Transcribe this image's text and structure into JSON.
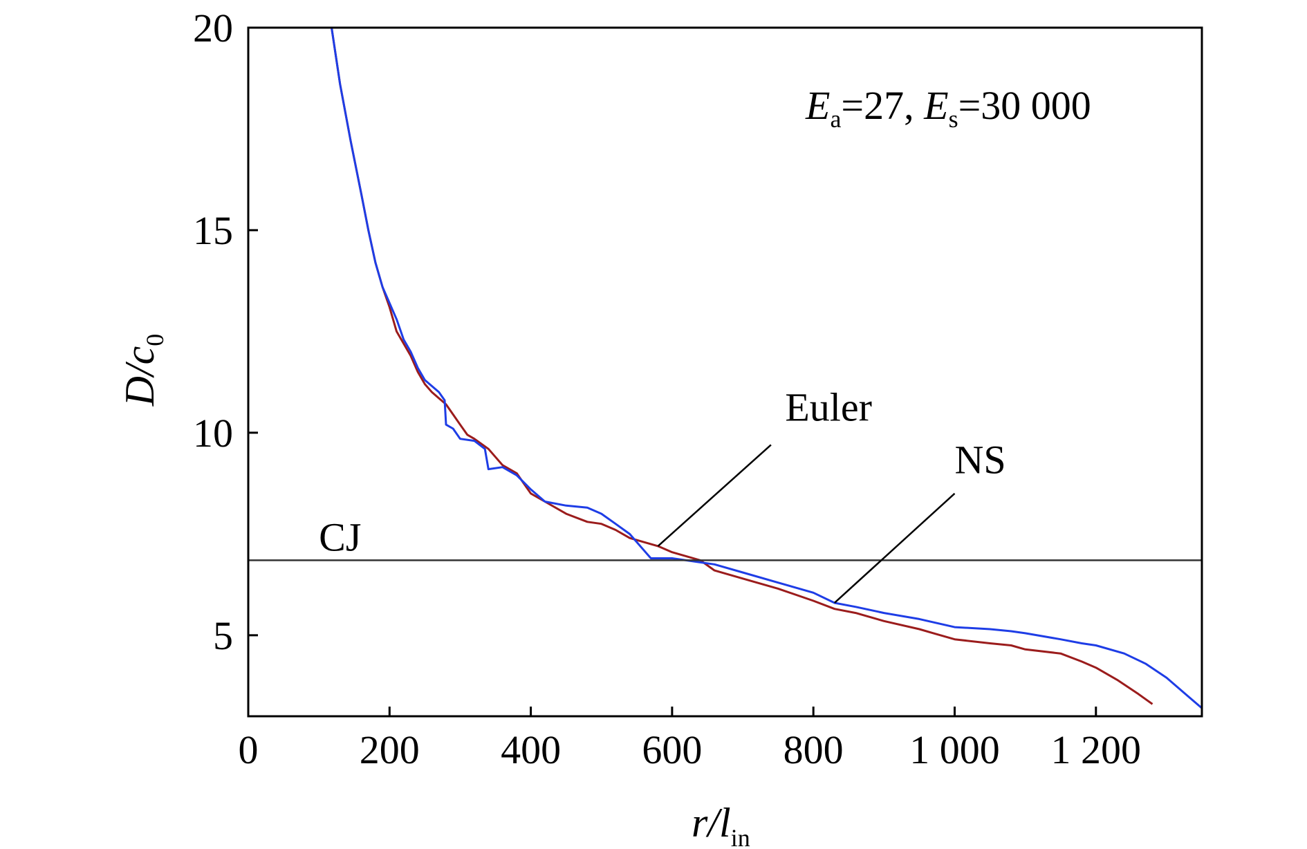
{
  "chart_data": {
    "type": "line",
    "xlim": [
      0,
      1350
    ],
    "ylim": [
      3,
      20
    ],
    "xticks": [
      {
        "value": 0,
        "label": "0"
      },
      {
        "value": 200,
        "label": "200"
      },
      {
        "value": 400,
        "label": "400"
      },
      {
        "value": 600,
        "label": "600"
      },
      {
        "value": 800,
        "label": "800"
      },
      {
        "value": 1000,
        "label": "1 000"
      },
      {
        "value": 1200,
        "label": "1 200"
      }
    ],
    "yticks": [
      {
        "value": 5,
        "label": "5"
      },
      {
        "value": 10,
        "label": "10"
      },
      {
        "value": 15,
        "label": "15"
      },
      {
        "value": 20,
        "label": "20"
      }
    ],
    "xlabel": {
      "main": "r/l",
      "sub": "in"
    },
    "ylabel": {
      "main": "D/c",
      "sub": "0"
    },
    "grid": false,
    "annotation": {
      "e1": "E",
      "s1": "a",
      "t1": "=27, ",
      "e2": "E",
      "s2": "s",
      "t2": "=30 000"
    },
    "reference_line": {
      "label": "CJ",
      "y": 6.85,
      "color": "#333333"
    },
    "series": [
      {
        "name": "Euler",
        "color": "#9b1c1c",
        "label_pos": [
          760,
          10.3
        ],
        "leader": [
          [
            580,
            7.2
          ],
          [
            740,
            9.7
          ]
        ],
        "points": [
          [
            118,
            20
          ],
          [
            130,
            18.6
          ],
          [
            145,
            17.2
          ],
          [
            160,
            15.9
          ],
          [
            170,
            15.0
          ],
          [
            180,
            14.2
          ],
          [
            190,
            13.6
          ],
          [
            200,
            13.1
          ],
          [
            210,
            12.5
          ],
          [
            220,
            12.2
          ],
          [
            230,
            11.9
          ],
          [
            240,
            11.5
          ],
          [
            250,
            11.2
          ],
          [
            260,
            11.0
          ],
          [
            270,
            10.85
          ],
          [
            280,
            10.7
          ],
          [
            290,
            10.45
          ],
          [
            300,
            10.2
          ],
          [
            310,
            9.95
          ],
          [
            320,
            9.85
          ],
          [
            340,
            9.6
          ],
          [
            360,
            9.2
          ],
          [
            380,
            9.0
          ],
          [
            400,
            8.5
          ],
          [
            420,
            8.3
          ],
          [
            450,
            8.0
          ],
          [
            480,
            7.8
          ],
          [
            500,
            7.75
          ],
          [
            520,
            7.6
          ],
          [
            540,
            7.4
          ],
          [
            560,
            7.3
          ],
          [
            580,
            7.2
          ],
          [
            600,
            7.05
          ],
          [
            620,
            6.95
          ],
          [
            640,
            6.85
          ],
          [
            660,
            6.6
          ],
          [
            700,
            6.4
          ],
          [
            750,
            6.15
          ],
          [
            800,
            5.85
          ],
          [
            830,
            5.65
          ],
          [
            860,
            5.55
          ],
          [
            900,
            5.35
          ],
          [
            950,
            5.15
          ],
          [
            970,
            5.05
          ],
          [
            1000,
            4.9
          ],
          [
            1050,
            4.8
          ],
          [
            1080,
            4.75
          ],
          [
            1100,
            4.65
          ],
          [
            1150,
            4.55
          ],
          [
            1180,
            4.35
          ],
          [
            1200,
            4.2
          ],
          [
            1230,
            3.9
          ],
          [
            1260,
            3.55
          ],
          [
            1280,
            3.3
          ]
        ]
      },
      {
        "name": "NS",
        "color": "#1e3de6",
        "label_pos": [
          1000,
          9.0
        ],
        "leader": [
          [
            830,
            5.8
          ],
          [
            1000,
            8.5
          ]
        ],
        "points": [
          [
            118,
            20
          ],
          [
            130,
            18.6
          ],
          [
            145,
            17.2
          ],
          [
            160,
            15.9
          ],
          [
            170,
            15.0
          ],
          [
            180,
            14.2
          ],
          [
            190,
            13.6
          ],
          [
            200,
            13.2
          ],
          [
            210,
            12.8
          ],
          [
            220,
            12.3
          ],
          [
            230,
            12.0
          ],
          [
            240,
            11.6
          ],
          [
            250,
            11.3
          ],
          [
            270,
            11.0
          ],
          [
            278,
            10.8
          ],
          [
            280,
            10.2
          ],
          [
            290,
            10.1
          ],
          [
            300,
            9.85
          ],
          [
            320,
            9.8
          ],
          [
            335,
            9.6
          ],
          [
            340,
            9.1
          ],
          [
            360,
            9.15
          ],
          [
            380,
            8.95
          ],
          [
            400,
            8.6
          ],
          [
            420,
            8.3
          ],
          [
            450,
            8.2
          ],
          [
            480,
            8.15
          ],
          [
            500,
            8.0
          ],
          [
            520,
            7.75
          ],
          [
            540,
            7.5
          ],
          [
            560,
            7.1
          ],
          [
            570,
            6.9
          ],
          [
            600,
            6.9
          ],
          [
            640,
            6.8
          ],
          [
            660,
            6.75
          ],
          [
            700,
            6.55
          ],
          [
            750,
            6.3
          ],
          [
            800,
            6.05
          ],
          [
            830,
            5.8
          ],
          [
            860,
            5.7
          ],
          [
            900,
            5.55
          ],
          [
            950,
            5.4
          ],
          [
            1000,
            5.2
          ],
          [
            1050,
            5.15
          ],
          [
            1080,
            5.1
          ],
          [
            1100,
            5.05
          ],
          [
            1150,
            4.9
          ],
          [
            1180,
            4.8
          ],
          [
            1200,
            4.75
          ],
          [
            1240,
            4.55
          ],
          [
            1270,
            4.3
          ],
          [
            1300,
            3.95
          ],
          [
            1330,
            3.5
          ],
          [
            1350,
            3.2
          ]
        ]
      }
    ]
  }
}
